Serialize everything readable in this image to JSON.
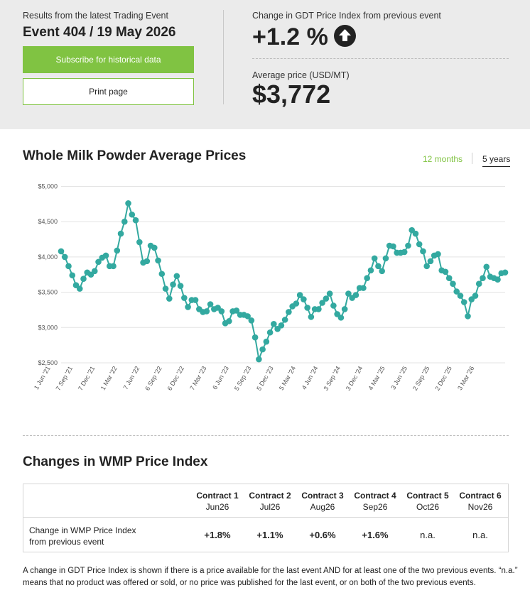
{
  "summary": {
    "latest_label": "Results from the latest Trading Event",
    "event": "Event 404 / 19 May 2026",
    "subscribe_label": "Subscribe for historical data",
    "print_label": "Print page",
    "change_label": "Change in GDT Price Index from previous event",
    "change_value": "+1.2 %",
    "change_direction_icon": "arrow-up-icon",
    "avg_label": "Average price (USD/MT)",
    "avg_value": "$3,772"
  },
  "chart_section": {
    "title": "Whole Milk Powder Average Prices",
    "tabs": [
      {
        "label": "12 months",
        "active": false
      },
      {
        "label": "5 years",
        "active": true
      }
    ]
  },
  "chart_data": {
    "type": "line",
    "title": "Whole Milk Powder Average Prices",
    "ylim": [
      2500,
      5000
    ],
    "yticks": [
      "$2,500",
      "$3,000",
      "$3,500",
      "$4,000",
      "$4,500",
      "$5,000"
    ],
    "ytick_values": [
      2500,
      3000,
      3500,
      4000,
      4500,
      5000
    ],
    "xticks": [
      "1 Jun '21",
      "7 Sep '21",
      "7 Dec '21",
      "1 Mar '22",
      "7 Jun '22",
      "6 Sep '22",
      "6 Dec '22",
      "7 Mar '23",
      "6 Jun '23",
      "5 Sep '23",
      "5 Dec '23",
      "5 Mar '24",
      "4 Jun '24",
      "3 Sep '24",
      "3 Dec '24",
      "4 Mar '25",
      "3 Jun '25",
      "2 Sep '25",
      "2 Dec '25",
      "3 Mar '26"
    ],
    "line_color": "#33a9a0",
    "grid": true,
    "series": [
      {
        "values": [
          4080,
          4000,
          3870,
          3740,
          3600,
          3550,
          3690,
          3780,
          3750,
          3800,
          3930,
          3990,
          4020,
          3870,
          3870,
          4090,
          4330,
          4500,
          4760,
          4600,
          4520,
          4210,
          3920,
          3940,
          4160,
          4130,
          3950,
          3760,
          3550,
          3410,
          3610,
          3730,
          3590,
          3420,
          3290,
          3390,
          3390,
          3260,
          3220,
          3230,
          3330,
          3260,
          3280,
          3230,
          3060,
          3090,
          3230,
          3240,
          3180,
          3180,
          3160,
          3100,
          2860,
          2550,
          2690,
          2800,
          2930,
          3050,
          2980,
          3030,
          3110,
          3220,
          3300,
          3340,
          3460,
          3400,
          3280,
          3150,
          3260,
          3260,
          3350,
          3410,
          3480,
          3310,
          3190,
          3140,
          3260,
          3480,
          3420,
          3460,
          3560,
          3560,
          3700,
          3810,
          3980,
          3870,
          3800,
          3980,
          4160,
          4150,
          4060,
          4060,
          4070,
          4160,
          4380,
          4330,
          4180,
          4080,
          3870,
          3940,
          4020,
          4040,
          3810,
          3790,
          3700,
          3620,
          3510,
          3450,
          3360,
          3160,
          3400,
          3450,
          3620,
          3700,
          3860,
          3720,
          3700,
          3680,
          3770,
          3780
        ]
      }
    ]
  },
  "changes": {
    "title": "Changes in WMP Price Index",
    "contracts": [
      {
        "name": "Contract 1",
        "month": "Jun26",
        "value": "+1.8%"
      },
      {
        "name": "Contract 2",
        "month": "Jul26",
        "value": "+1.1%"
      },
      {
        "name": "Contract 3",
        "month": "Aug26",
        "value": "+0.6%"
      },
      {
        "name": "Contract 4",
        "month": "Sep26",
        "value": "+1.6%"
      },
      {
        "name": "Contract 5",
        "month": "Oct26",
        "value": "n.a."
      },
      {
        "name": "Contract 6",
        "month": "Nov26",
        "value": "n.a."
      }
    ],
    "row_label_line1": "Change in WMP Price Index",
    "row_label_line2": "from previous event"
  },
  "footnote": "A change in GDT Price Index is shown if there is a price available for the last event AND for at least one of the two previous events. “n.a.” means that no product was offered or sold, or no price was published for the last event, or on both of the two previous events."
}
